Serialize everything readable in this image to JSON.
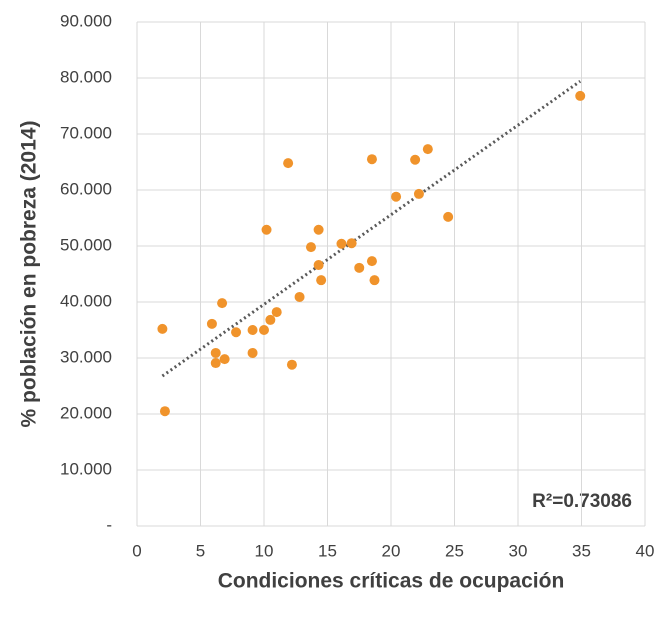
{
  "chart_data": {
    "type": "scatter",
    "x_label": "Condiciones críticas de ocupación",
    "y_label": "% población en pobreza (2014)",
    "annotation": "R²=0.73086",
    "color": "#f0932b",
    "trendline": true,
    "trendline_color": "#595959",
    "grid": true,
    "x": [
      2.0,
      2.2,
      5.9,
      6.2,
      6.2,
      6.7,
      6.9,
      7.8,
      9.1,
      9.1,
      10.0,
      10.2,
      10.5,
      11.0,
      11.9,
      12.2,
      12.8,
      13.7,
      14.3,
      14.3,
      14.5,
      16.1,
      16.9,
      17.5,
      18.5,
      18.5,
      18.7,
      20.4,
      21.9,
      22.2,
      22.9,
      24.5,
      34.9
    ],
    "y": [
      35.2,
      20.5,
      36.1,
      30.9,
      29.1,
      39.8,
      29.8,
      34.6,
      35.0,
      30.9,
      35.0,
      52.9,
      36.8,
      38.2,
      64.8,
      28.8,
      40.9,
      49.8,
      52.9,
      46.6,
      43.9,
      50.4,
      50.5,
      46.1,
      65.5,
      47.3,
      43.9,
      58.8,
      65.4,
      59.3,
      67.3,
      55.2,
      76.8
    ],
    "xlim": [
      0,
      40
    ],
    "xticks": [
      0,
      5,
      10,
      15,
      20,
      25,
      30,
      35,
      40
    ],
    "ylim": [
      0,
      90
    ],
    "yticks": [
      {
        "value": 0,
        "label": "-"
      },
      {
        "value": 10,
        "label": "10.000"
      },
      {
        "value": 20,
        "label": "20.000"
      },
      {
        "value": 30,
        "label": "30.000"
      },
      {
        "value": 40,
        "label": "40.000"
      },
      {
        "value": 50,
        "label": "50.000"
      },
      {
        "value": 60,
        "label": "60.000"
      },
      {
        "value": 70,
        "label": "70.000"
      },
      {
        "value": 80,
        "label": "80.000"
      },
      {
        "value": 90,
        "label": "90.000"
      }
    ]
  }
}
